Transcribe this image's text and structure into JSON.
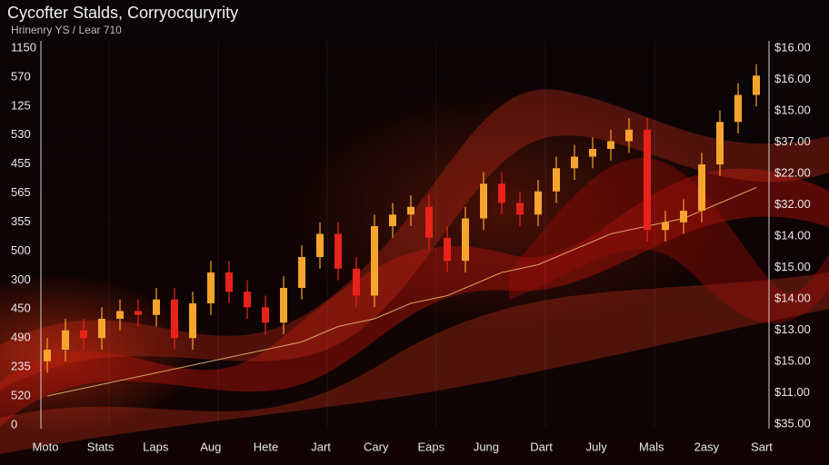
{
  "chart_data": {
    "type": "candlestick",
    "title": "Cycofter Stalds, Corryocquryrity",
    "subtitle": "Hrinenry YS / Lear 710",
    "x_labels": [
      "Moto",
      "Stats",
      "Laps",
      "Aug",
      "Hete",
      "Jart",
      "Cary",
      "Eaps",
      "Jung",
      "Dart",
      "July",
      "Mals",
      "2asy",
      "Sart"
    ],
    "y_labels": [
      "1150",
      "570",
      "125",
      "530",
      "455",
      "565",
      "355",
      "500",
      "300",
      "450",
      "490",
      "235",
      "520",
      "0"
    ],
    "y2_labels": [
      "$16.00",
      "$16.00",
      "$15.00",
      "$37.00",
      "$22.00",
      "$32.00",
      "$14.00",
      "$15.00",
      "$14.00",
      "$13.00",
      "$15.00",
      "$11.00",
      "$35.00"
    ],
    "ylim": [
      0,
      100
    ],
    "up_color": "#f5a52c",
    "down_color": "#e8231b",
    "open": [
      17,
      20,
      25,
      23,
      28,
      30,
      29,
      33,
      23,
      32,
      40,
      35,
      31,
      27,
      36,
      44,
      50,
      41,
      34,
      52,
      55,
      57,
      49,
      43,
      54,
      63,
      58,
      55,
      61,
      67,
      70,
      72,
      74,
      77,
      51,
      53,
      56,
      68,
      79,
      86
    ],
    "high": [
      23,
      28,
      28,
      31,
      33,
      33,
      36,
      36,
      35,
      43,
      43,
      38,
      34,
      39,
      47,
      53,
      53,
      44,
      55,
      58,
      60,
      60,
      52,
      57,
      66,
      66,
      61,
      64,
      70,
      73,
      75,
      77,
      80,
      80,
      56,
      59,
      71,
      82,
      89,
      94
    ],
    "low": [
      14,
      17,
      20,
      20,
      25,
      26,
      26,
      20,
      20,
      29,
      32,
      28,
      24,
      24,
      33,
      41,
      38,
      31,
      31,
      49,
      52,
      46,
      40,
      40,
      51,
      55,
      52,
      52,
      58,
      64,
      67,
      69,
      71,
      48,
      48,
      50,
      53,
      65,
      76,
      83
    ],
    "close": [
      20,
      25,
      23,
      28,
      30,
      29,
      33,
      23,
      32,
      40,
      35,
      31,
      27,
      36,
      44,
      50,
      41,
      34,
      52,
      55,
      57,
      49,
      43,
      54,
      63,
      58,
      55,
      61,
      67,
      70,
      72,
      74,
      77,
      51,
      53,
      56,
      68,
      79,
      86,
      91
    ],
    "line": {
      "color": "#e8c070",
      "values": [
        8,
        9,
        10,
        11,
        12,
        13,
        14,
        15,
        16,
        17,
        18,
        19,
        20,
        21,
        22,
        24,
        26,
        27,
        28,
        30,
        32,
        33,
        34,
        36,
        38,
        40,
        41,
        42,
        44,
        46,
        48,
        50,
        51,
        52,
        53,
        54,
        56,
        58,
        60,
        62
      ]
    }
  }
}
